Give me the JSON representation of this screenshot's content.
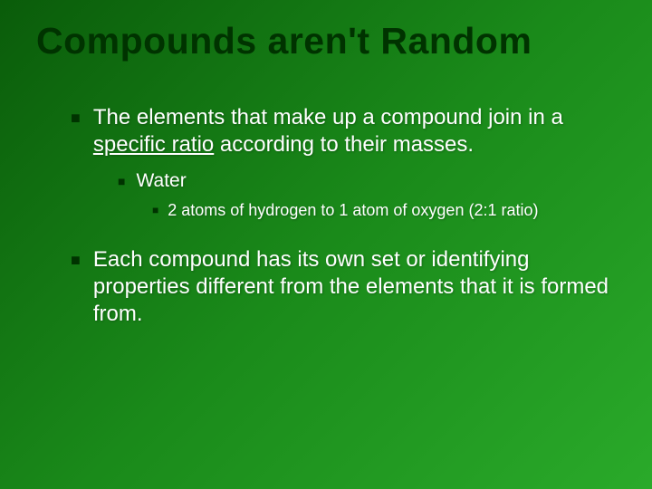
{
  "title": "Compounds aren't Random",
  "bullets": {
    "b1_pre": "The elements that make up a compound join in a ",
    "b1_underlined": "specific ratio",
    "b1_post": " according to their masses.",
    "b2": "Water",
    "b3": "2 atoms of hydrogen to 1 atom of oxygen (2:1 ratio)",
    "b4": "Each compound has its own set or identifying properties different from the elements that it is formed from."
  },
  "style": {
    "background_gradient": [
      "#0a5c0a",
      "#1a8a1a",
      "#2aaa2a"
    ],
    "title_color": "#003300",
    "text_color": "#ffffff",
    "bullet_marker_color": "#003300",
    "title_fontsize": 41,
    "l1_fontsize": 24,
    "l2_fontsize": 21,
    "l3_fontsize": 18,
    "font_family": "Arial"
  }
}
